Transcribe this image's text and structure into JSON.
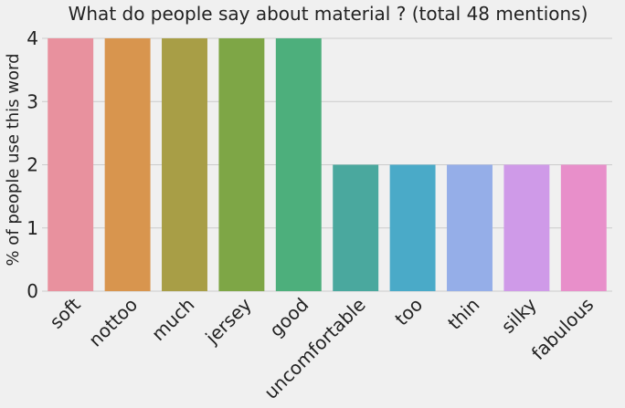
{
  "chart_data": {
    "type": "bar",
    "title": "What do people say about material ? (total 48 mentions)",
    "xlabel": "",
    "ylabel": "% of people use this word",
    "categories": [
      "soft",
      "nottoo",
      "much",
      "jersey",
      "good",
      "uncomfortable",
      "too",
      "thin",
      "silky",
      "fabulous"
    ],
    "values": [
      4,
      4,
      4,
      4,
      4,
      2,
      2,
      2,
      2,
      2
    ],
    "colors": [
      "#e8919e",
      "#d8954e",
      "#a89e46",
      "#7ea646",
      "#4daf7c",
      "#4aa89e",
      "#4aaac8",
      "#95aee8",
      "#cf9ae8",
      "#e88fca"
    ],
    "ylim": [
      0,
      4
    ],
    "yticks": [
      0,
      1,
      2,
      3,
      4
    ],
    "grid": true,
    "legend": "none"
  }
}
